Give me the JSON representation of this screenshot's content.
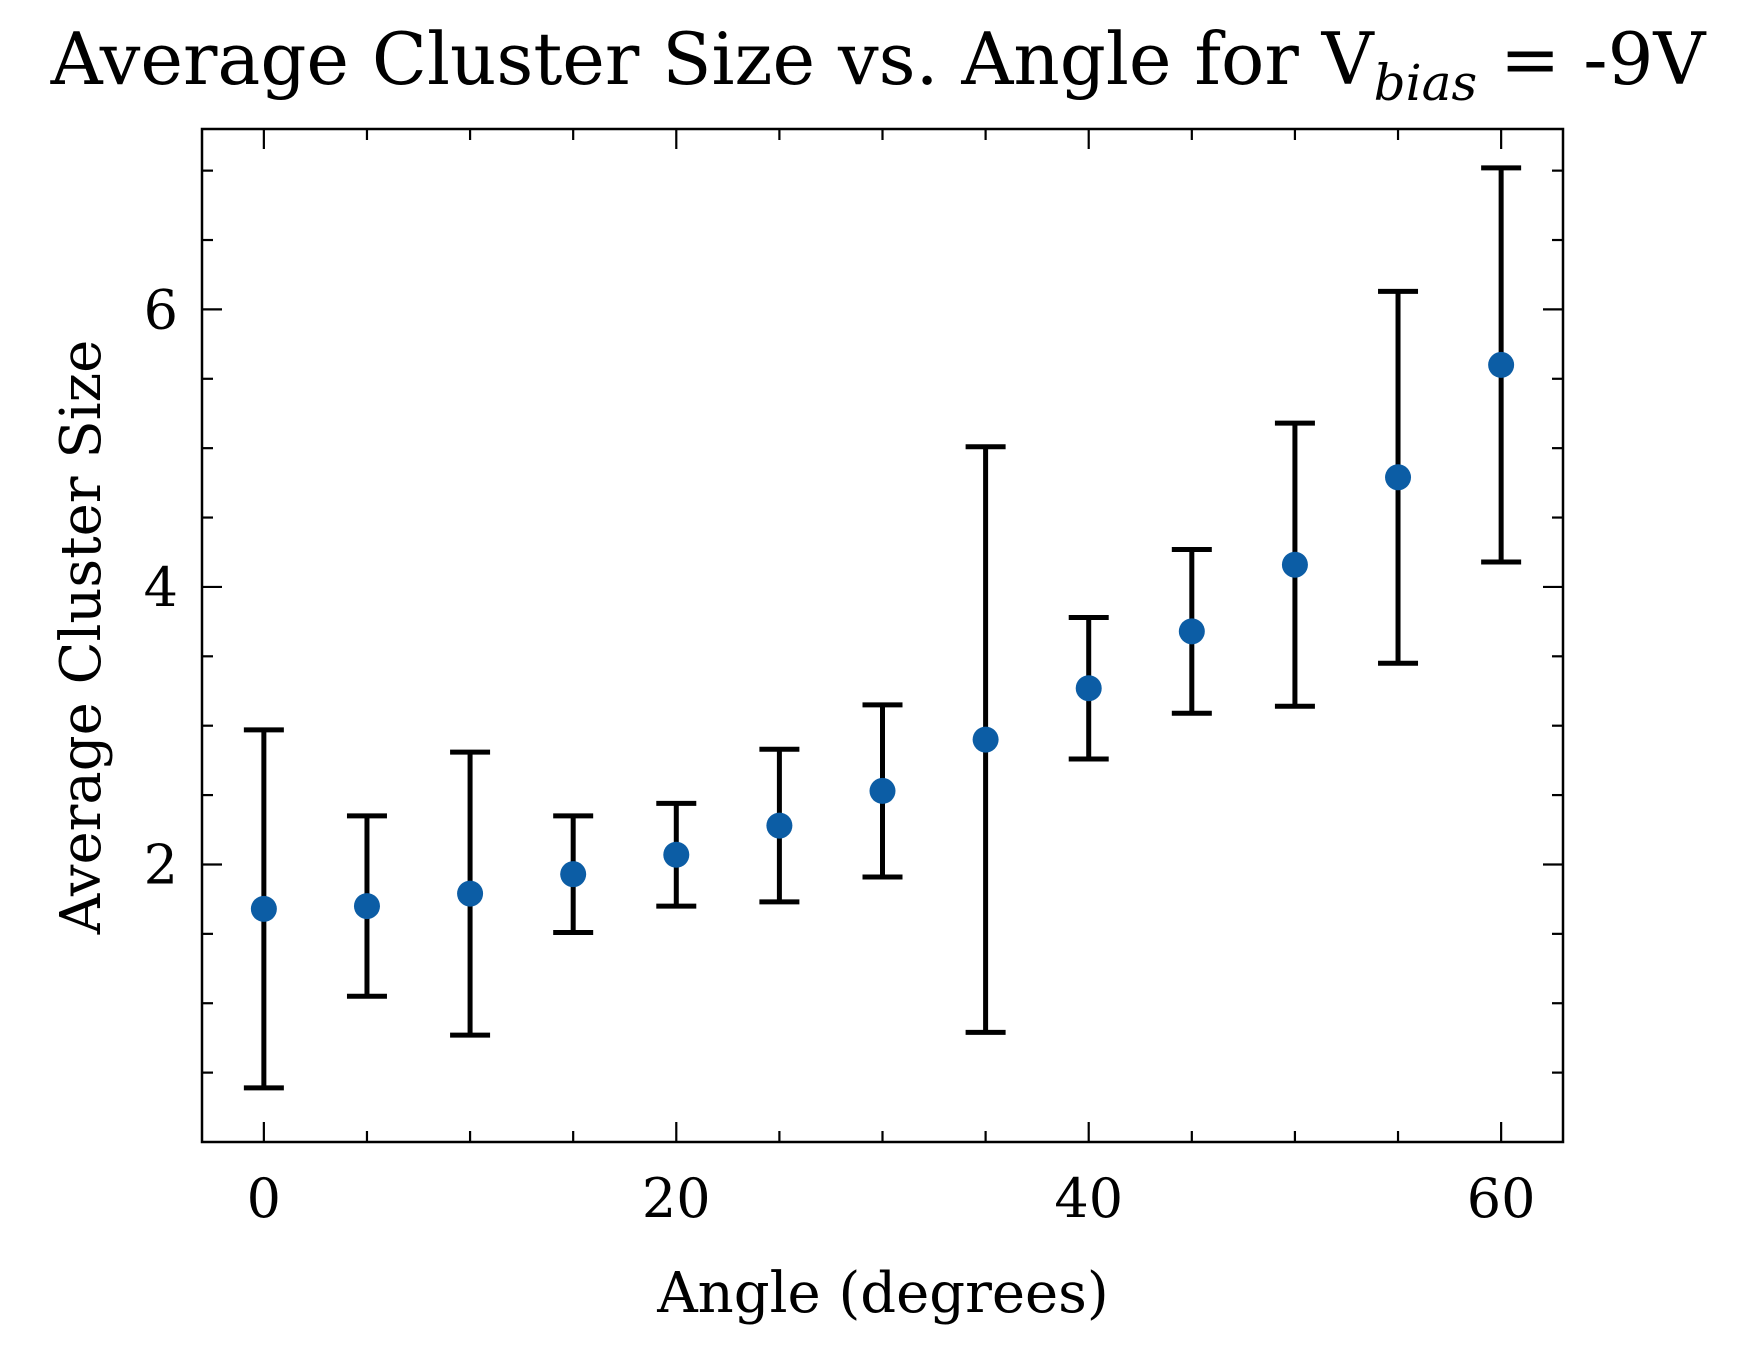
{
  "chart_data": {
    "type": "scatter",
    "title": {
      "main": "Average Cluster Size vs. Angle for V",
      "subscript": "bias",
      "suffix": " = -9V"
    },
    "xlabel": "Angle (degrees)",
    "ylabel": "Average Cluster Size",
    "xlim": [
      -3,
      63
    ],
    "ylim": [
      0,
      7.3
    ],
    "xticks": [
      0,
      20,
      40,
      60
    ],
    "yticks": [
      2,
      4,
      6
    ],
    "x_minor_step": 5,
    "y_minor_step": 0.5,
    "grid": false,
    "marker_color": "#0C5DA5",
    "errorbar_color": "#000000",
    "series": [
      {
        "x": [
          0,
          5,
          10,
          15,
          20,
          25,
          30,
          35,
          40,
          45,
          50,
          55,
          60
        ],
        "y": [
          1.68,
          1.7,
          1.79,
          1.93,
          2.07,
          2.28,
          2.53,
          2.9,
          3.27,
          3.68,
          4.16,
          4.79,
          5.6
        ],
        "yerr": [
          1.29,
          0.65,
          1.02,
          0.42,
          0.37,
          0.55,
          0.62,
          2.11,
          0.51,
          0.59,
          1.02,
          1.34,
          1.42
        ]
      }
    ]
  }
}
